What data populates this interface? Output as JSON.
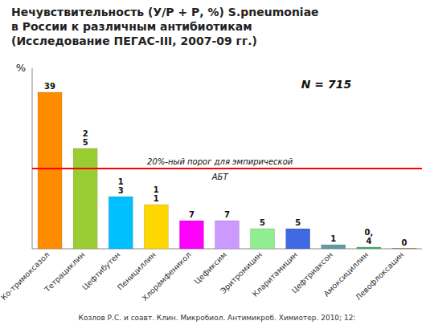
{
  "chart_data": {
    "type": "bar",
    "title": [
      "Нечувствительность (У/Р + Р, %) S.pneumoniae",
      "в России к различным антибиотикам",
      "(Исследование ПЕГАС-III, 2007-09 гг.)"
    ],
    "categories": [
      "Ко-тримоксазол",
      "Тетрациклин",
      "Цефтибутен",
      "Пенициллин",
      "Хлорамфеникол",
      "Цефиксим",
      "Эритромицин",
      "Кларитамицин",
      "Цефтриаксон",
      "Амоксициллин",
      "Левофлоксацин"
    ],
    "values": [
      39,
      25,
      13,
      11,
      7,
      7,
      5,
      5,
      1,
      0.4,
      0.1
    ],
    "value_labels": [
      "39",
      "2\n5",
      "1\n3",
      "1\n1",
      "7",
      "7",
      "5",
      "5",
      "1",
      "0,\n4",
      "0"
    ],
    "colors": [
      "#FF8C00",
      "#9ACD32",
      "#00BFFF",
      "#FFD700",
      "#FF00FF",
      "#CC99FF",
      "#90EE90",
      "#4169E1",
      "#5F9EA0",
      "#3CB371",
      "#CD853F"
    ],
    "data_labels": true,
    "ylabel": "%",
    "ylim": [
      0,
      45
    ],
    "yticks": [],
    "tick_labels": "x",
    "grid": false,
    "threshold": {
      "value": 20,
      "color": "#ff0000",
      "label": "20%-ный порог для эмпирической",
      "label2": "АБТ"
    },
    "annotations": [
      "N = 715"
    ],
    "source": "Козлов Р.С. и соавт. Клин. Микробиол. Антимикроб. Химиотер. 2010; 12:"
  }
}
